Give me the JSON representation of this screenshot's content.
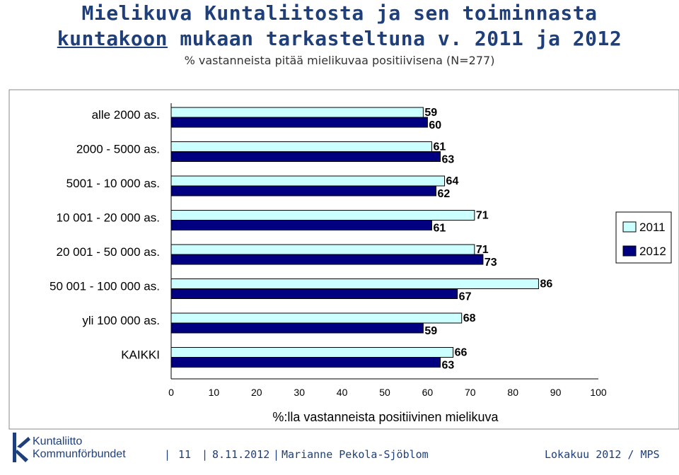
{
  "header": {
    "title_line1": "Mielikuva Kuntaliitosta ja sen toiminnasta",
    "title_line2_underlined": "kuntakoon",
    "title_line2_rest": " mukaan tarkasteltuna v. 2011 ja 2012",
    "subtitle": "% vastanneista pitää mielikuvaa positiivisena (N=277)"
  },
  "chart_data": {
    "type": "bar",
    "orientation": "horizontal",
    "categories": [
      "alle 2000 as.",
      "2000 - 5000 as.",
      "5001 - 10 000 as.",
      "10 001 - 20 000 as.",
      "20 001 - 50 000 as.",
      "50 001 - 100 000 as.",
      "yli 100 000 as.",
      "KAIKKI"
    ],
    "series": [
      {
        "name": "2011",
        "color": "#ccffff",
        "values": [
          59,
          61,
          64,
          71,
          71,
          86,
          68,
          66
        ]
      },
      {
        "name": "2012",
        "color": "#000080",
        "values": [
          60,
          63,
          62,
          61,
          73,
          67,
          59,
          63
        ]
      }
    ],
    "xlabel": "%:lla vastanneista positiivinen mielikuva",
    "xlim": [
      0,
      100
    ],
    "xticks": [
      "0",
      "10",
      "20",
      "30",
      "40",
      "50",
      "60",
      "70",
      "80",
      "90",
      "100"
    ],
    "grid": false,
    "legend_position": "right"
  },
  "footer": {
    "logo_line1": "Kuntaliitto",
    "logo_line2": "Kommunförbundet",
    "page": "11",
    "date": "8.11.2012",
    "author": "Marianne Pekola-Sjöblom",
    "right": "Lokakuu 2012 / MPS"
  }
}
